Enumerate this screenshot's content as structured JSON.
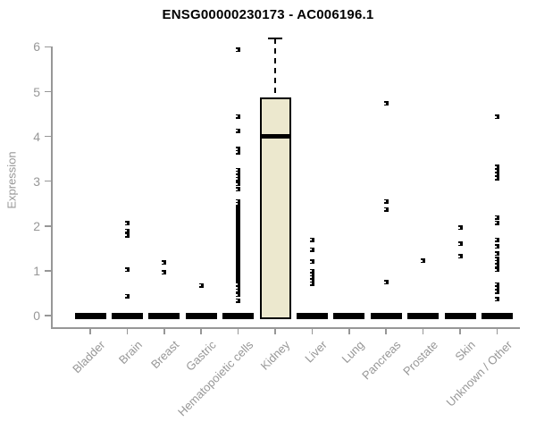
{
  "title": "ENSG00000230173 - AC006196.1",
  "y_axis": {
    "label": "Expression"
  },
  "chart_data": {
    "type": "boxplot",
    "title": "ENSG00000230173 - AC006196.1",
    "xlabel": "",
    "ylabel": "Expression",
    "ylim": [
      0,
      6.2
    ],
    "yticks": [
      0,
      1,
      2,
      3,
      4,
      5,
      6
    ],
    "grid": false,
    "legend": "none",
    "point_color": "#000000",
    "box_fill_color": "#ECE8CE",
    "box_line_color": "#000000",
    "axis_color": "#979797",
    "categories": [
      "Bladder",
      "Brain",
      "Breast",
      "Gastric",
      "Hematopoietic cells",
      "Kidney",
      "Liver",
      "Lung",
      "Pancreas",
      "Prostate",
      "Skin",
      "Unknown / Other"
    ],
    "series": [
      {
        "category": "Bladder",
        "box": {
          "min": 0,
          "q1": 0,
          "median": 0,
          "q3": 0,
          "max": 0
        },
        "points": []
      },
      {
        "category": "Brain",
        "box": {
          "min": 0,
          "q1": 0,
          "median": 0,
          "q3": 0,
          "max": 0
        },
        "points": [
          2.06,
          1.89,
          1.79,
          1.02,
          0.43
        ]
      },
      {
        "category": "Breast",
        "box": {
          "min": 0,
          "q1": 0,
          "median": 0,
          "q3": 0,
          "max": 0
        },
        "points": [
          1.18,
          0.96
        ]
      },
      {
        "category": "Gastric",
        "box": {
          "min": 0,
          "q1": 0,
          "median": 0,
          "q3": 0,
          "max": 0
        },
        "points": [
          0.67
        ]
      },
      {
        "category": "Hematopoietic cells",
        "box": {
          "min": 0,
          "q1": 0,
          "median": 0,
          "q3": 0,
          "max": 0
        },
        "points": [
          5.93,
          4.45,
          4.13,
          3.72,
          3.65,
          3.25,
          3.19,
          3.12,
          3.05,
          2.94,
          2.82,
          2.55,
          2.49,
          2.42,
          2.38,
          2.34,
          2.3,
          2.26,
          2.22,
          2.18,
          2.14,
          2.1,
          2.06,
          2.02,
          1.98,
          1.94,
          1.9,
          1.86,
          1.82,
          1.78,
          1.74,
          1.7,
          1.66,
          1.62,
          1.58,
          1.54,
          1.5,
          1.46,
          1.42,
          1.38,
          1.34,
          1.3,
          1.26,
          1.22,
          1.18,
          1.14,
          1.1,
          1.06,
          1.02,
          0.98,
          0.94,
          0.9,
          0.86,
          0.82,
          0.78,
          0.74,
          0.7,
          0.62,
          0.55,
          0.46,
          0.33
        ]
      },
      {
        "category": "Kidney",
        "box": {
          "min": 0,
          "q1": 0,
          "median": 4.0,
          "q3": 4.87,
          "max": 6.19
        },
        "points": []
      },
      {
        "category": "Liver",
        "box": {
          "min": 0,
          "q1": 0,
          "median": 0,
          "q3": 0,
          "max": 0
        },
        "points": [
          1.69,
          1.47,
          1.2,
          0.99,
          0.92,
          0.85,
          0.78,
          0.71
        ]
      },
      {
        "category": "Lung",
        "box": {
          "min": 0,
          "q1": 0,
          "median": 0,
          "q3": 0,
          "max": 0
        },
        "points": []
      },
      {
        "category": "Pancreas",
        "box": {
          "min": 0,
          "q1": 0,
          "median": 0,
          "q3": 0,
          "max": 0
        },
        "points": [
          4.74,
          2.55,
          2.37,
          0.74
        ]
      },
      {
        "category": "Prostate",
        "box": {
          "min": 0,
          "q1": 0,
          "median": 0,
          "q3": 0,
          "max": 0
        },
        "points": [
          1.22
        ]
      },
      {
        "category": "Skin",
        "box": {
          "min": 0,
          "q1": 0,
          "median": 0,
          "q3": 0,
          "max": 0
        },
        "points": [
          1.96,
          1.6,
          1.32
        ]
      },
      {
        "category": "Unknown / Other",
        "box": {
          "min": 0,
          "q1": 0,
          "median": 0,
          "q3": 0,
          "max": 0
        },
        "points": [
          4.44,
          3.32,
          3.24,
          3.16,
          3.07,
          2.19,
          2.07,
          1.69,
          1.54,
          1.38,
          1.26,
          1.19,
          1.12,
          1.02,
          0.69,
          0.62,
          0.53,
          0.36
        ]
      }
    ]
  }
}
